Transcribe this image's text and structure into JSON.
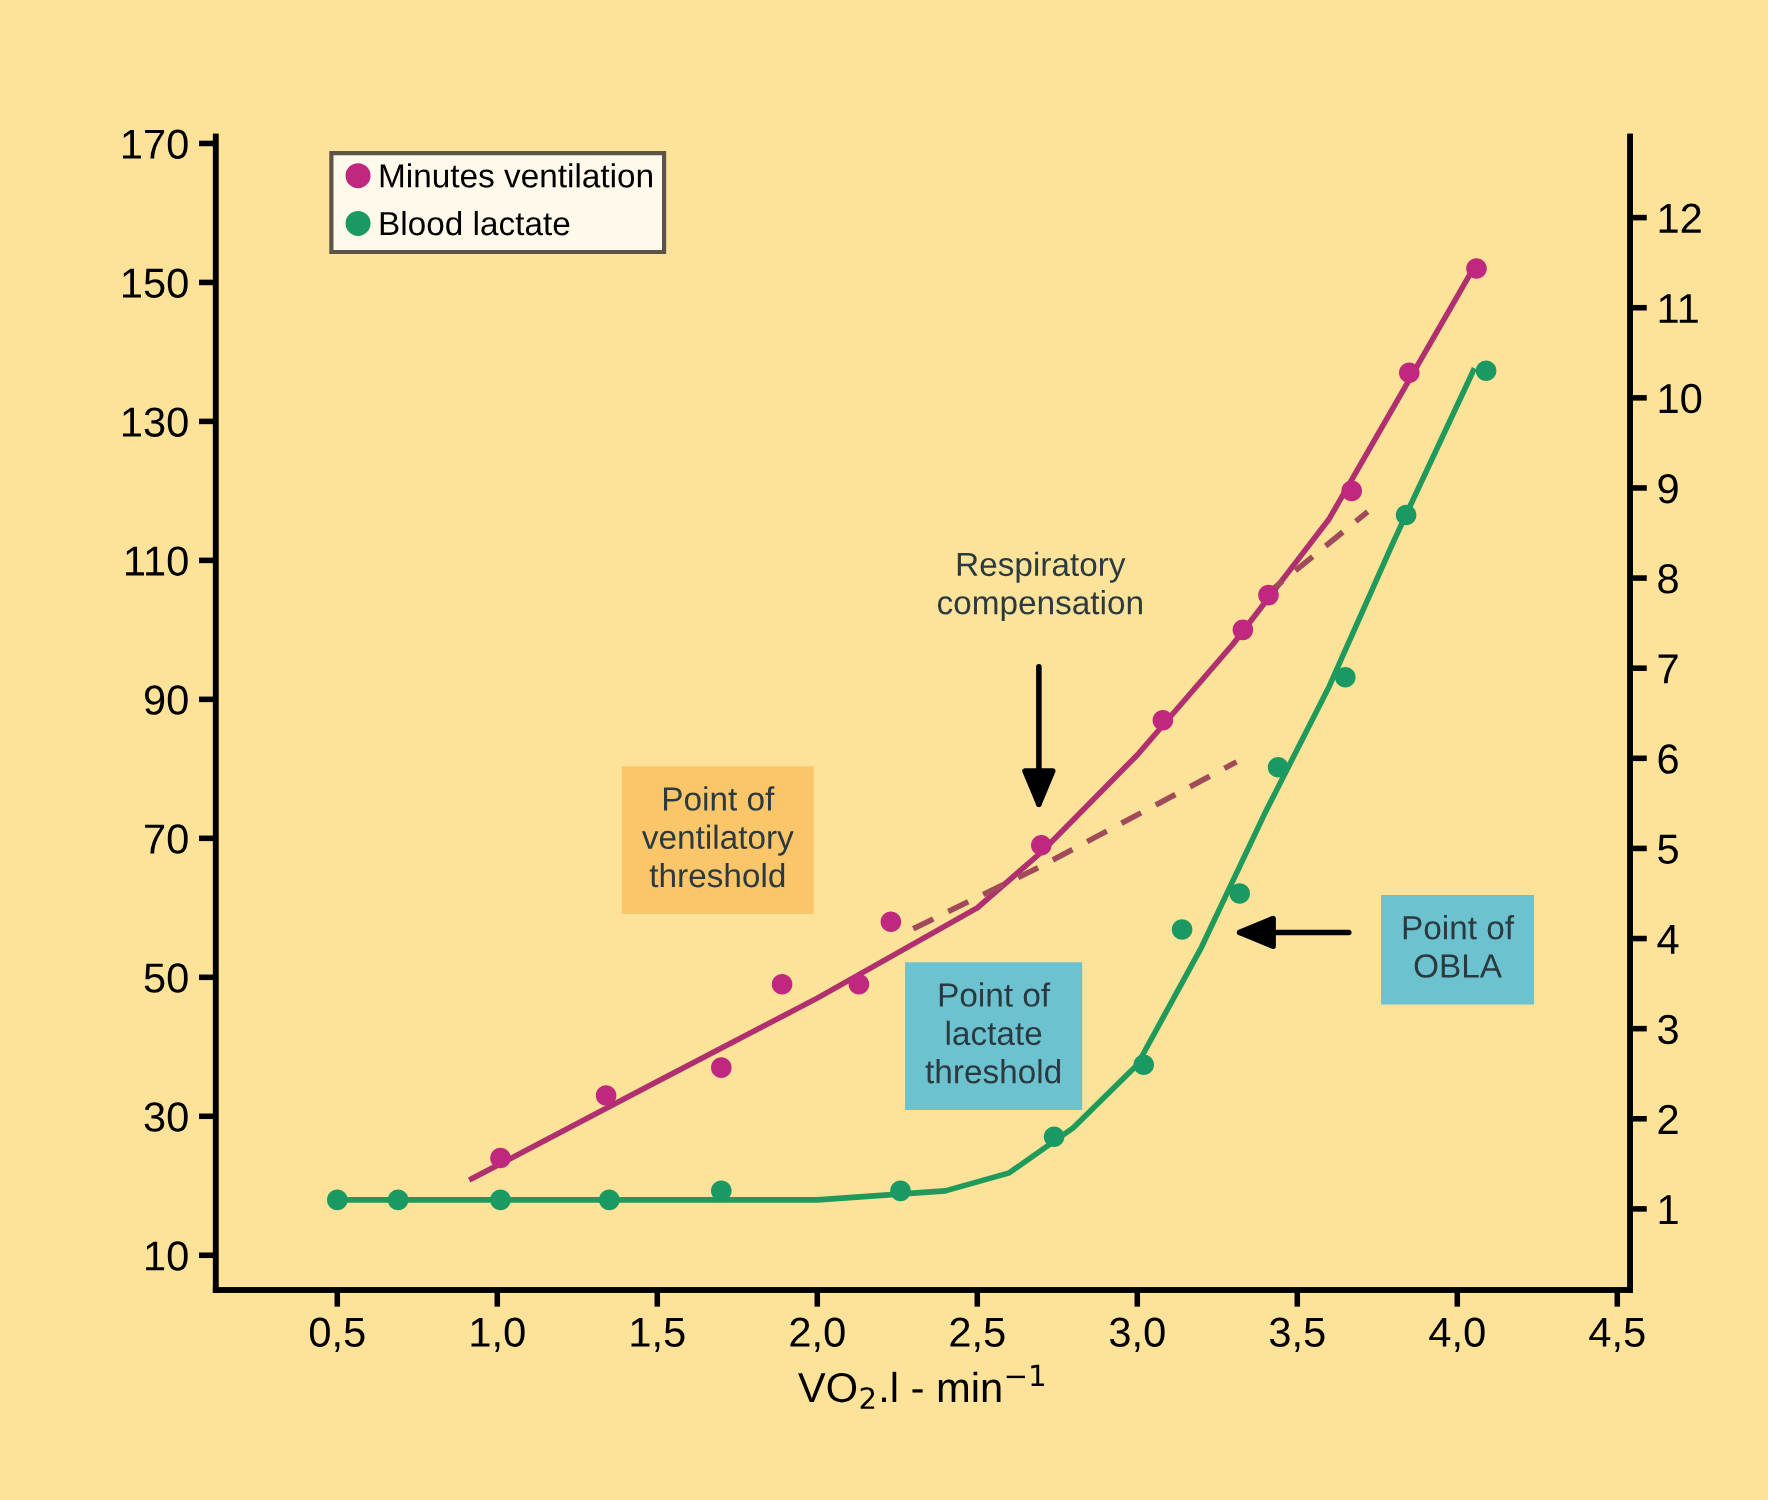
{
  "chart_data": {
    "type": "scatter",
    "xlabel": "VO$_{2}$.l - min$^{−1}$",
    "xlim": [
      0.12,
      4.54
    ],
    "xticks": [
      {
        "value": 0.5,
        "label": "0,5"
      },
      {
        "value": 1.0,
        "label": "1,0"
      },
      {
        "value": 1.5,
        "label": "1,5"
      },
      {
        "value": 2.0,
        "label": "2,0"
      },
      {
        "value": 2.5,
        "label": "2,5"
      },
      {
        "value": 3.0,
        "label": "3,0"
      },
      {
        "value": 3.5,
        "label": "3,5"
      },
      {
        "value": 4.0,
        "label": "4,0"
      },
      {
        "value": 4.5,
        "label": "4,5"
      }
    ],
    "ylim": [
      5,
      171
    ],
    "yticks": [
      10,
      30,
      50,
      70,
      90,
      110,
      130,
      150,
      170
    ],
    "y2lim": [
      0.1,
      12.9
    ],
    "y2ticks": [
      1,
      2,
      3,
      4,
      5,
      6,
      7,
      8,
      9,
      10,
      11,
      12
    ],
    "legend": "top left",
    "grid": false,
    "series": [
      {
        "name": "Minutes ventilation",
        "marker": "circle",
        "color": "#c0287f",
        "x": [
          1.01,
          1.34,
          1.7,
          1.89,
          2.13,
          2.23,
          2.7,
          3.08,
          3.33,
          3.41,
          3.67,
          3.85,
          4.06
        ],
        "values": [
          24,
          33,
          37,
          49,
          49,
          58,
          69,
          87,
          100,
          105,
          120,
          137,
          152
        ]
      },
      {
        "name": "Blood lactate",
        "marker": "circle",
        "axis": "y2",
        "color": "#1a9a62",
        "x": [
          0.5,
          0.69,
          1.01,
          1.35,
          1.7,
          2.26,
          2.74,
          3.02,
          3.14,
          3.32,
          3.44,
          3.65,
          3.84,
          4.09
        ],
        "values": [
          1.1,
          1.1,
          1.1,
          1.1,
          1.2,
          1.2,
          1.8,
          2.6,
          4.1,
          4.5,
          5.9,
          6.9,
          8.7,
          10.3
        ]
      },
      {
        "type": "line",
        "color": "#b0306f",
        "line_style": "solid",
        "x": [
          0.92,
          1.5,
          2.0,
          2.5,
          2.7,
          3.0,
          3.3,
          3.6,
          4.05
        ],
        "values": [
          21,
          35,
          47,
          60,
          68,
          82,
          98,
          116,
          152
        ]
      },
      {
        "type": "line",
        "color": "#a04a5a",
        "line_style": "dashed",
        "x": [
          2.3,
          2.7,
          3.31
        ],
        "values": [
          57,
          66,
          81
        ]
      },
      {
        "type": "line",
        "color": "#a04a5a",
        "line_style": "dashed",
        "x": [
          3.4,
          3.72
        ],
        "values": [
          105,
          117
        ]
      },
      {
        "type": "line",
        "axis": "y2",
        "color": "#1f9a5a",
        "line_style": "solid",
        "x": [
          0.5,
          1.0,
          1.5,
          2.0,
          2.4,
          2.6,
          2.8,
          3.0,
          3.2,
          3.4,
          3.6,
          3.8,
          4.05
        ],
        "values": [
          1.1,
          1.1,
          1.1,
          1.1,
          1.2,
          1.4,
          1.9,
          2.6,
          3.9,
          5.4,
          6.8,
          8.4,
          10.3
        ]
      }
    ],
    "annotations": [
      "Respiratory\ncompensation",
      "Point of\nventilatory\nthreshold",
      "Point of\nlactate\nthreshold",
      "Point of\nOBLA"
    ]
  }
}
